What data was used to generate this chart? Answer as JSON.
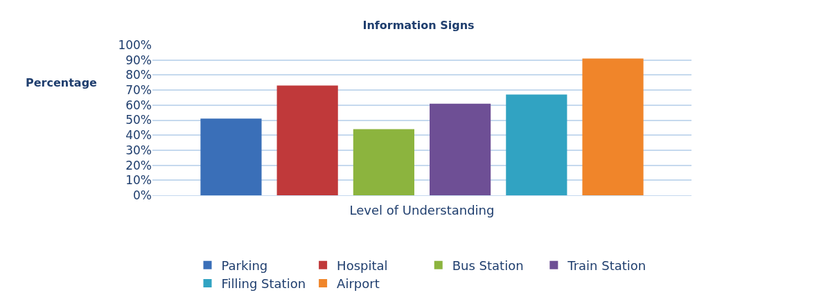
{
  "chart_data": {
    "type": "bar",
    "title": "Information Signs",
    "xlabel": "Level of Understanding",
    "ylabel": "Percentage",
    "categories": [
      null
    ],
    "series": [
      {
        "name": "Parking",
        "color": "#3a6fb8",
        "values": [
          51
        ]
      },
      {
        "name": "Hospital",
        "color": "#c0393a",
        "values": [
          73
        ]
      },
      {
        "name": "Bus Station",
        "color": "#8cb43e",
        "values": [
          44
        ]
      },
      {
        "name": "Train Station",
        "color": "#6e4f95",
        "values": [
          61
        ]
      },
      {
        "name": "Filling Station",
        "color": "#31a3c2",
        "values": [
          67
        ]
      },
      {
        "name": "Airport",
        "color": "#f0852a",
        "values": [
          91
        ]
      }
    ],
    "ylim": [
      0,
      100
    ],
    "yticks": [
      {
        "value": 0,
        "label": "0%"
      },
      {
        "value": 10,
        "label": "10%"
      },
      {
        "value": 20,
        "label": "20%"
      },
      {
        "value": 30,
        "label": "30%"
      },
      {
        "value": 40,
        "label": "40%"
      },
      {
        "value": 50,
        "label": "50%"
      },
      {
        "value": 60,
        "label": "60%"
      },
      {
        "value": 70,
        "label": "70%"
      },
      {
        "value": 80,
        "label": "80%"
      },
      {
        "value": 90,
        "label": "90%"
      },
      {
        "value": 100,
        "label": "100%"
      }
    ],
    "grid": "y",
    "legend": "bottom"
  }
}
